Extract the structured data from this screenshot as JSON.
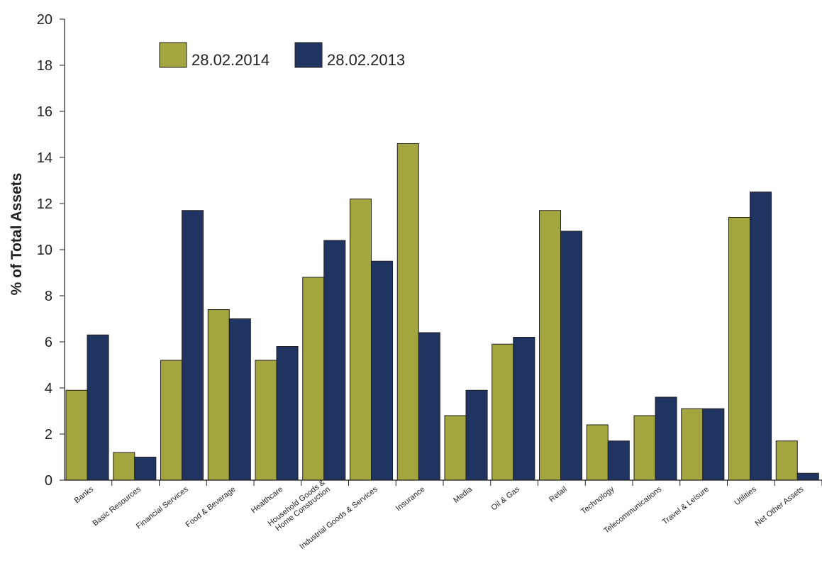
{
  "chart_data": {
    "type": "bar",
    "ylabel": "% of Total Assets",
    "xlabel": "",
    "ylim": [
      0,
      20
    ],
    "yticks": [
      0,
      2,
      4,
      6,
      8,
      10,
      12,
      14,
      16,
      18,
      20
    ],
    "categories": [
      [
        "Banks"
      ],
      [
        "Basic Resources"
      ],
      [
        "Financial Services"
      ],
      [
        "Food & Beverage"
      ],
      [
        "Healthcare"
      ],
      [
        "Household Goods &",
        "Home Construction"
      ],
      [
        "Industrial Goods & Services"
      ],
      [
        "Insurance"
      ],
      [
        "Media"
      ],
      [
        "Oil & Gas"
      ],
      [
        "Retail"
      ],
      [
        "Technology"
      ],
      [
        "Telecommunications"
      ],
      [
        "Travel & Leisure"
      ],
      [
        "Utilities"
      ],
      [
        "Net Other Assets"
      ]
    ],
    "series": [
      {
        "name": "28.02.2014",
        "color": "#a3a63f",
        "values": [
          3.9,
          1.2,
          5.2,
          7.4,
          5.2,
          8.8,
          12.2,
          14.6,
          2.8,
          5.9,
          11.7,
          2.4,
          2.8,
          3.1,
          11.4,
          1.7
        ]
      },
      {
        "name": "28.02.2013",
        "color": "#1f3461",
        "values": [
          6.3,
          1.0,
          11.7,
          7.0,
          5.8,
          10.4,
          9.5,
          6.4,
          3.9,
          6.2,
          10.8,
          1.7,
          3.6,
          3.1,
          12.5,
          0.3
        ]
      }
    ],
    "grid": false,
    "legend": "top-left"
  }
}
